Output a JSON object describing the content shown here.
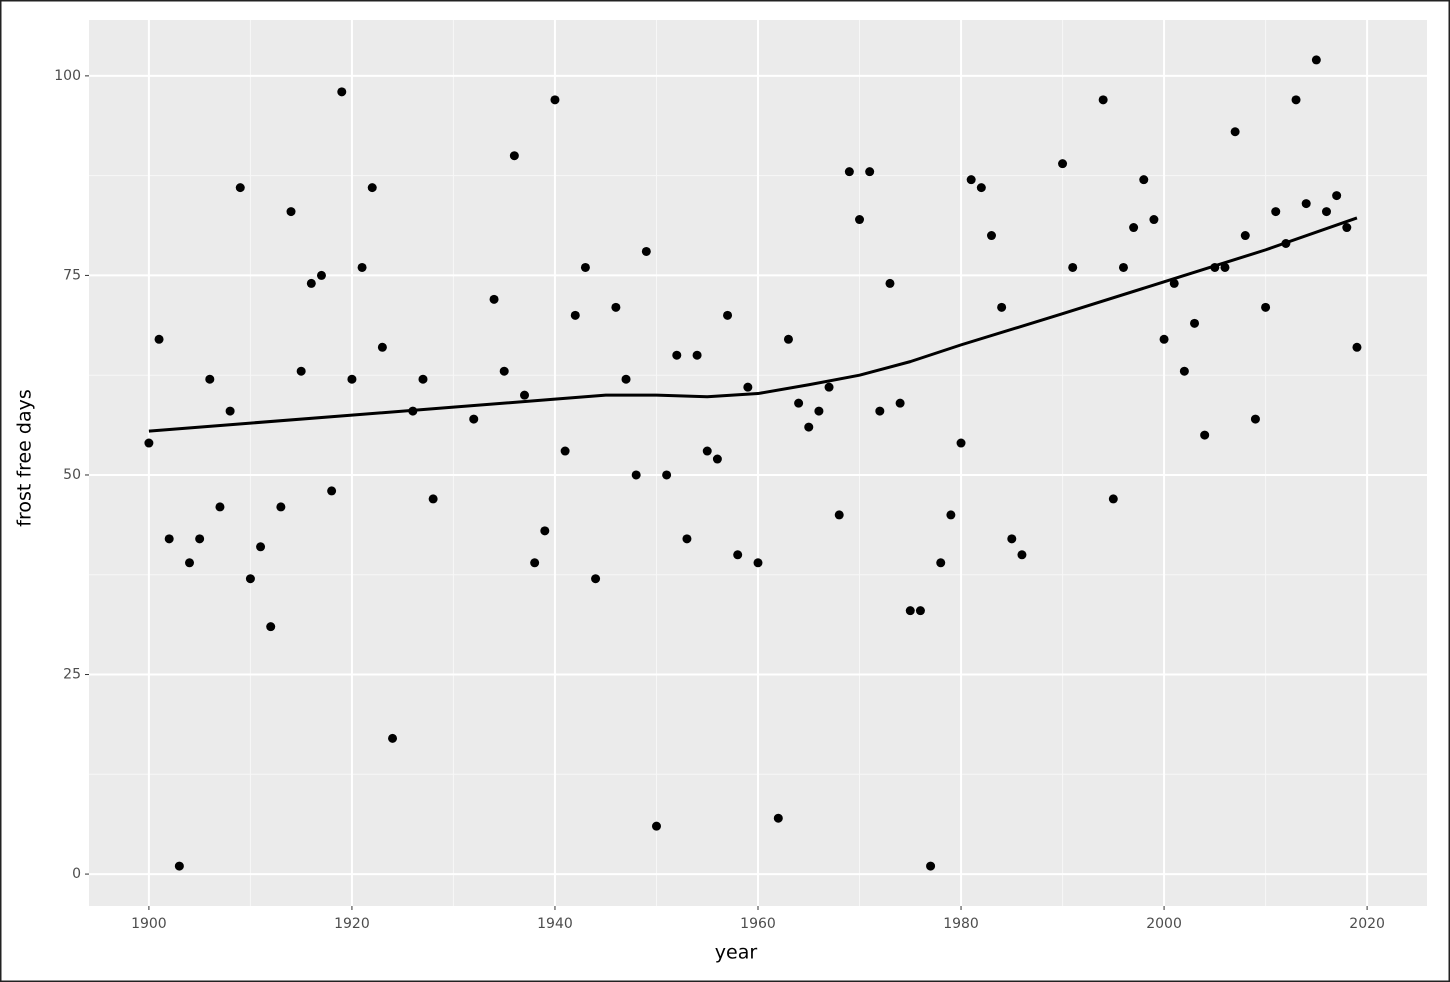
{
  "chart_data": {
    "type": "scatter",
    "x_label": "year",
    "y_label": "frost free days",
    "xlim": [
      1894.1,
      2025.9
    ],
    "ylim": [
      -4,
      107
    ],
    "xticks": [
      1900,
      1920,
      1940,
      1960,
      1980,
      2000,
      2020
    ],
    "yticks": [
      0,
      25,
      50,
      75,
      100
    ],
    "grid": true,
    "series": [
      {
        "type": "scatter",
        "color": "#000000",
        "x": [
          1900,
          1901,
          1902,
          1903,
          1904,
          1905,
          1906,
          1907,
          1908,
          1909,
          1910,
          1911,
          1912,
          1913,
          1914,
          1915,
          1916,
          1917,
          1918,
          1919,
          1920,
          1921,
          1922,
          1923,
          1924,
          1926,
          1927,
          1928,
          1932,
          1934,
          1935,
          1936,
          1937,
          1938,
          1939,
          1940,
          1941,
          1942,
          1943,
          1944,
          1946,
          1947,
          1948,
          1949,
          1950,
          1951,
          1952,
          1953,
          1954,
          1955,
          1956,
          1957,
          1958,
          1959,
          1960,
          1962,
          1963,
          1964,
          1965,
          1966,
          1967,
          1968,
          1969,
          1970,
          1971,
          1972,
          1973,
          1974,
          1975,
          1976,
          1977,
          1978,
          1979,
          1980,
          1981,
          1982,
          1983,
          1984,
          1985,
          1986,
          1990,
          1991,
          1994,
          1995,
          1996,
          1997,
          1998,
          1999,
          2000,
          2001,
          2002,
          2003,
          2004,
          2005,
          2006,
          2007,
          2008,
          2009,
          2010,
          2011,
          2012,
          2013,
          2014,
          2015,
          2016,
          2017,
          2018,
          2019
        ],
        "values": [
          54,
          67,
          42,
          1,
          39,
          42,
          62,
          46,
          58,
          86,
          37,
          41,
          31,
          46,
          83,
          63,
          74,
          75,
          48,
          98,
          62,
          76,
          86,
          66,
          17,
          58,
          62,
          47,
          57,
          72,
          63,
          90,
          60,
          39,
          43,
          97,
          53,
          70,
          76,
          37,
          71,
          62,
          50,
          78,
          6,
          50,
          65,
          42,
          65,
          53,
          52,
          70,
          40,
          61,
          39,
          7,
          67,
          59,
          56,
          58,
          61,
          45,
          88,
          82,
          88,
          58,
          74,
          59,
          33,
          33,
          1,
          39,
          45,
          54,
          87,
          86,
          80,
          71,
          42,
          40,
          89,
          76,
          97,
          47,
          76,
          81,
          87,
          82,
          67,
          74,
          63,
          69,
          55,
          76,
          76,
          93,
          80,
          57,
          71,
          83,
          79,
          97,
          84,
          102,
          83,
          85,
          81,
          66
        ]
      },
      {
        "type": "line",
        "color": "#000000",
        "x": [
          1900,
          1910,
          1920,
          1930,
          1940,
          1945,
          1950,
          1955,
          1960,
          1965,
          1970,
          1975,
          1980,
          1990,
          2000,
          2010,
          2019
        ],
        "values": [
          55.5,
          56.5,
          57.5,
          58.5,
          59.5,
          60,
          60,
          59.8,
          60.2,
          61.3,
          62.5,
          64.2,
          66.3,
          70.2,
          74.2,
          78.2,
          82.2
        ]
      }
    ]
  }
}
